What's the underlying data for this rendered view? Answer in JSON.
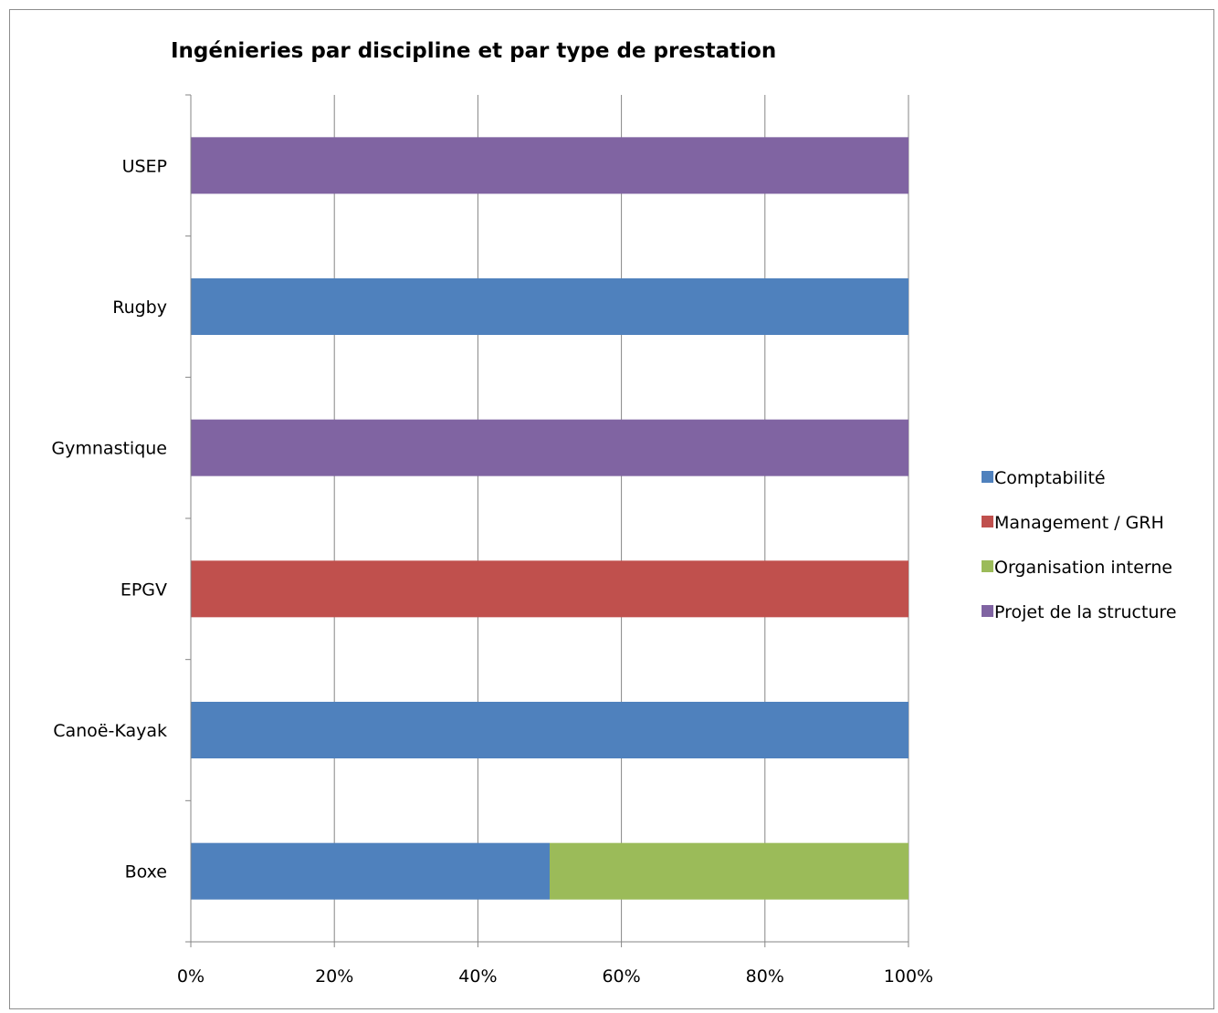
{
  "chart_data": {
    "type": "bar",
    "orientation": "horizontal",
    "stacked": "percent",
    "title": "Ingénieries par discipline et par type de prestation",
    "categories": [
      "Boxe",
      "Canoë-Kayak",
      "EPGV",
      "Gymnastique",
      "Rugby",
      "USEP"
    ],
    "series": [
      {
        "name": "Comptabilité",
        "color": "#4f81bd",
        "values": [
          50,
          100,
          0,
          0,
          100,
          0
        ]
      },
      {
        "name": "Management / GRH",
        "color": "#c0504d",
        "values": [
          0,
          0,
          100,
          0,
          0,
          0
        ]
      },
      {
        "name": "Organisation interne",
        "color": "#9bbb59",
        "values": [
          50,
          0,
          0,
          0,
          0,
          0
        ]
      },
      {
        "name": "Projet de la structure",
        "color": "#8064a2",
        "values": [
          0,
          0,
          0,
          100,
          0,
          100
        ]
      }
    ],
    "x_ticks": [
      "0%",
      "20%",
      "40%",
      "60%",
      "80%",
      "100%"
    ],
    "xlim": [
      0,
      100
    ],
    "grid": "vertical",
    "legend_position": "right"
  }
}
